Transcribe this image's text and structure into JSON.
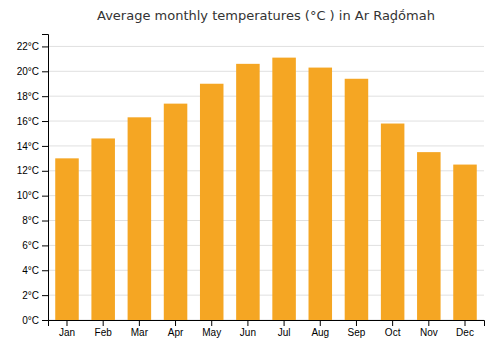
{
  "chart_data": {
    "type": "bar",
    "title": "Average monthly temperatures (°C ) in Ar Raḑṍmah",
    "categories": [
      "Jan",
      "Feb",
      "Mar",
      "Apr",
      "May",
      "Jun",
      "Jul",
      "Aug",
      "Sep",
      "Oct",
      "Nov",
      "Dec"
    ],
    "values": [
      13.0,
      14.6,
      16.3,
      17.4,
      19.0,
      20.6,
      21.1,
      20.3,
      19.4,
      15.8,
      13.5,
      12.5
    ],
    "color": "#F5A623",
    "ylim": [
      0,
      23
    ],
    "yticks": [
      {
        "value": 0,
        "label": "0°C"
      },
      {
        "value": 2,
        "label": "2°C"
      },
      {
        "value": 4,
        "label": "4°C"
      },
      {
        "value": 6,
        "label": "6°C"
      },
      {
        "value": 8,
        "label": "8°C"
      },
      {
        "value": 10,
        "label": "10°C"
      },
      {
        "value": 12,
        "label": "12°C"
      },
      {
        "value": 14,
        "label": "14°C"
      },
      {
        "value": 16,
        "label": "16°C"
      },
      {
        "value": 18,
        "label": "18°C"
      },
      {
        "value": 20,
        "label": "20°C"
      },
      {
        "value": 22,
        "label": "22°C"
      }
    ],
    "grid": true
  }
}
